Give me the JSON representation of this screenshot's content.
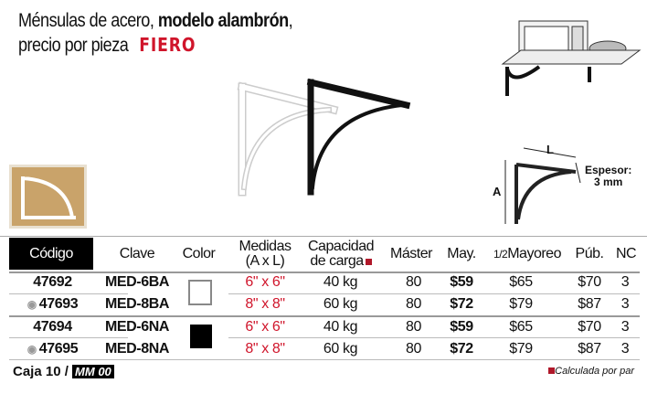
{
  "title": {
    "line1_regular": "Ménsulas de acero, ",
    "line1_bold": "modelo alambrón",
    "line1_end": ",",
    "line2": "precio por pieza",
    "brand": "FIERO"
  },
  "diagram": {
    "label_a": "A",
    "label_l": "L",
    "espesor_label": "Espesor:",
    "espesor_value": "3 mm"
  },
  "table": {
    "headers": [
      "Código",
      "Clave",
      "Color",
      "Medidas",
      "(A x L)",
      "Capacidad",
      "de carga",
      "Máster",
      "May.",
      "1/2",
      "Mayoreo",
      "Púb.",
      "NC"
    ],
    "rows": [
      {
        "codigo": "47692",
        "clave": "MED-6BA",
        "color": "white",
        "medidas": "6\" x 6\"",
        "capacidad": "40 kg",
        "master": "80",
        "may": "$59",
        "medio": "$65",
        "pub": "$70",
        "nc": "3",
        "eye": false
      },
      {
        "codigo": "47693",
        "clave": "MED-8BA",
        "color": "white",
        "medidas": "8\" x 8\"",
        "capacidad": "60 kg",
        "master": "80",
        "may": "$72",
        "medio": "$79",
        "pub": "$87",
        "nc": "3",
        "eye": true
      },
      {
        "codigo": "47694",
        "clave": "MED-6NA",
        "color": "black",
        "medidas": "6\" x 6\"",
        "capacidad": "40 kg",
        "master": "80",
        "may": "$59",
        "medio": "$65",
        "pub": "$70",
        "nc": "3",
        "eye": false
      },
      {
        "codigo": "47695",
        "clave": "MED-8NA",
        "color": "black",
        "medidas": "8\" x 8\"",
        "capacidad": "60 kg",
        "master": "80",
        "may": "$72",
        "medio": "$79",
        "pub": "$87",
        "nc": "3",
        "eye": true
      }
    ]
  },
  "footer": {
    "caja": "Caja 10 /",
    "mm": "MM 00",
    "note": "Calculada por par"
  },
  "colors": {
    "accent": "#d0152b",
    "header_black": "#000000"
  }
}
